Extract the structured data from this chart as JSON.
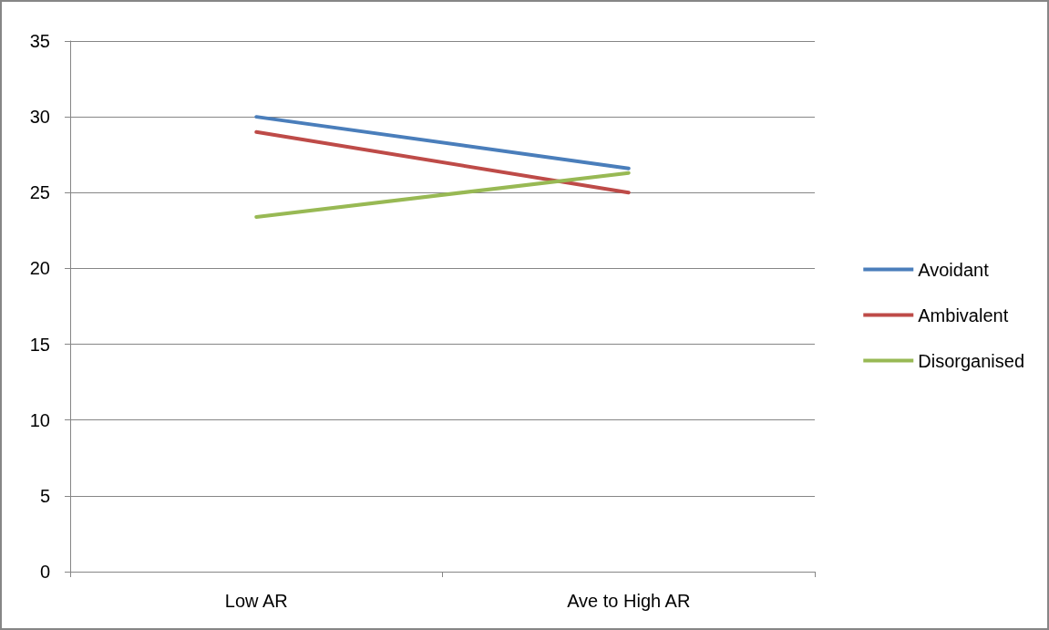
{
  "chart_data": {
    "type": "line",
    "categories": [
      "Low AR",
      "Ave to High AR"
    ],
    "series": [
      {
        "name": "Avoidant",
        "color": "#4a7ebb",
        "values": [
          30,
          26.6
        ]
      },
      {
        "name": "Ambivalent",
        "color": "#be4b48",
        "values": [
          29,
          25
        ]
      },
      {
        "name": "Disorganised",
        "color": "#98b954",
        "values": [
          23.4,
          26.3
        ]
      }
    ],
    "ylim": [
      0,
      35
    ],
    "yticks": [
      0,
      5,
      10,
      15,
      20,
      25,
      30,
      35
    ],
    "grid": "y",
    "legend": "right",
    "marker": "none",
    "line_style": "solid"
  }
}
